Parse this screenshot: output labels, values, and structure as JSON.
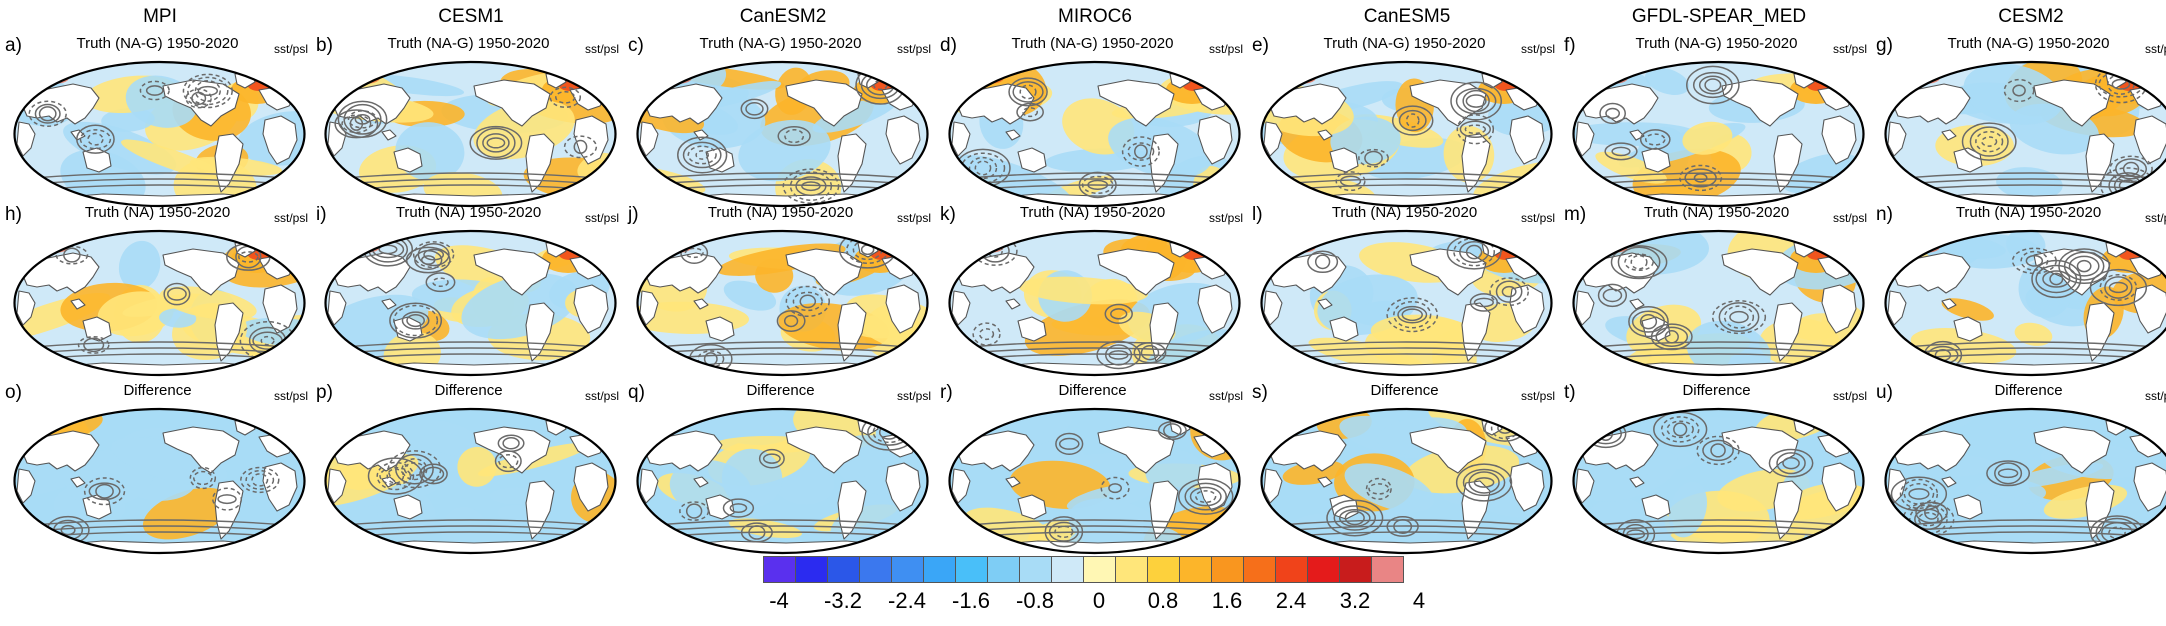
{
  "models": [
    "MPI",
    "CESM1",
    "CanESM2",
    "MIROC6",
    "CanESM5",
    "GFDL-SPEAR_MED",
    "CESM2"
  ],
  "row_titles": [
    "Truth (NA-G) 1950-2020",
    "Truth (NA) 1950-2020",
    "Difference"
  ],
  "panel_tag": "sst/psl",
  "panel_letters": [
    "a)",
    "b)",
    "c)",
    "d)",
    "e)",
    "f)",
    "g)",
    "h)",
    "i)",
    "j)",
    "k)",
    "l)",
    "m)",
    "n)",
    "o)",
    "p)",
    "q)",
    "r)",
    "s)",
    "t)",
    "u)"
  ],
  "colorbar": {
    "colors": [
      "#5a30ee",
      "#2b2bf0",
      "#2b57e8",
      "#3b78ee",
      "#3f8ff2",
      "#3aa6f7",
      "#49bff9",
      "#7ecdf5",
      "#a8dcf6",
      "#cfe9f8",
      "#fff7b4",
      "#ffe67a",
      "#fdd13c",
      "#fcb52a",
      "#f9961f",
      "#f66f1a",
      "#f0431a",
      "#e41b1b",
      "#c81c1c",
      "#e98585"
    ],
    "tick_labels": [
      "-4",
      "-3.2",
      "-2.4",
      "-1.6",
      "-0.8",
      "0",
      "0.8",
      "1.6",
      "2.4",
      "3.2",
      "4"
    ]
  },
  "colors": {
    "ocean_light_blue": "#cfe9f8",
    "ocean_blue": "#a8dcf6",
    "warm_yellow": "#ffe67a",
    "warm_orange": "#fcb52a",
    "hot_red": "#f0431a",
    "contour_gray": "#6a6a6a",
    "land_white": "#ffffff"
  }
}
